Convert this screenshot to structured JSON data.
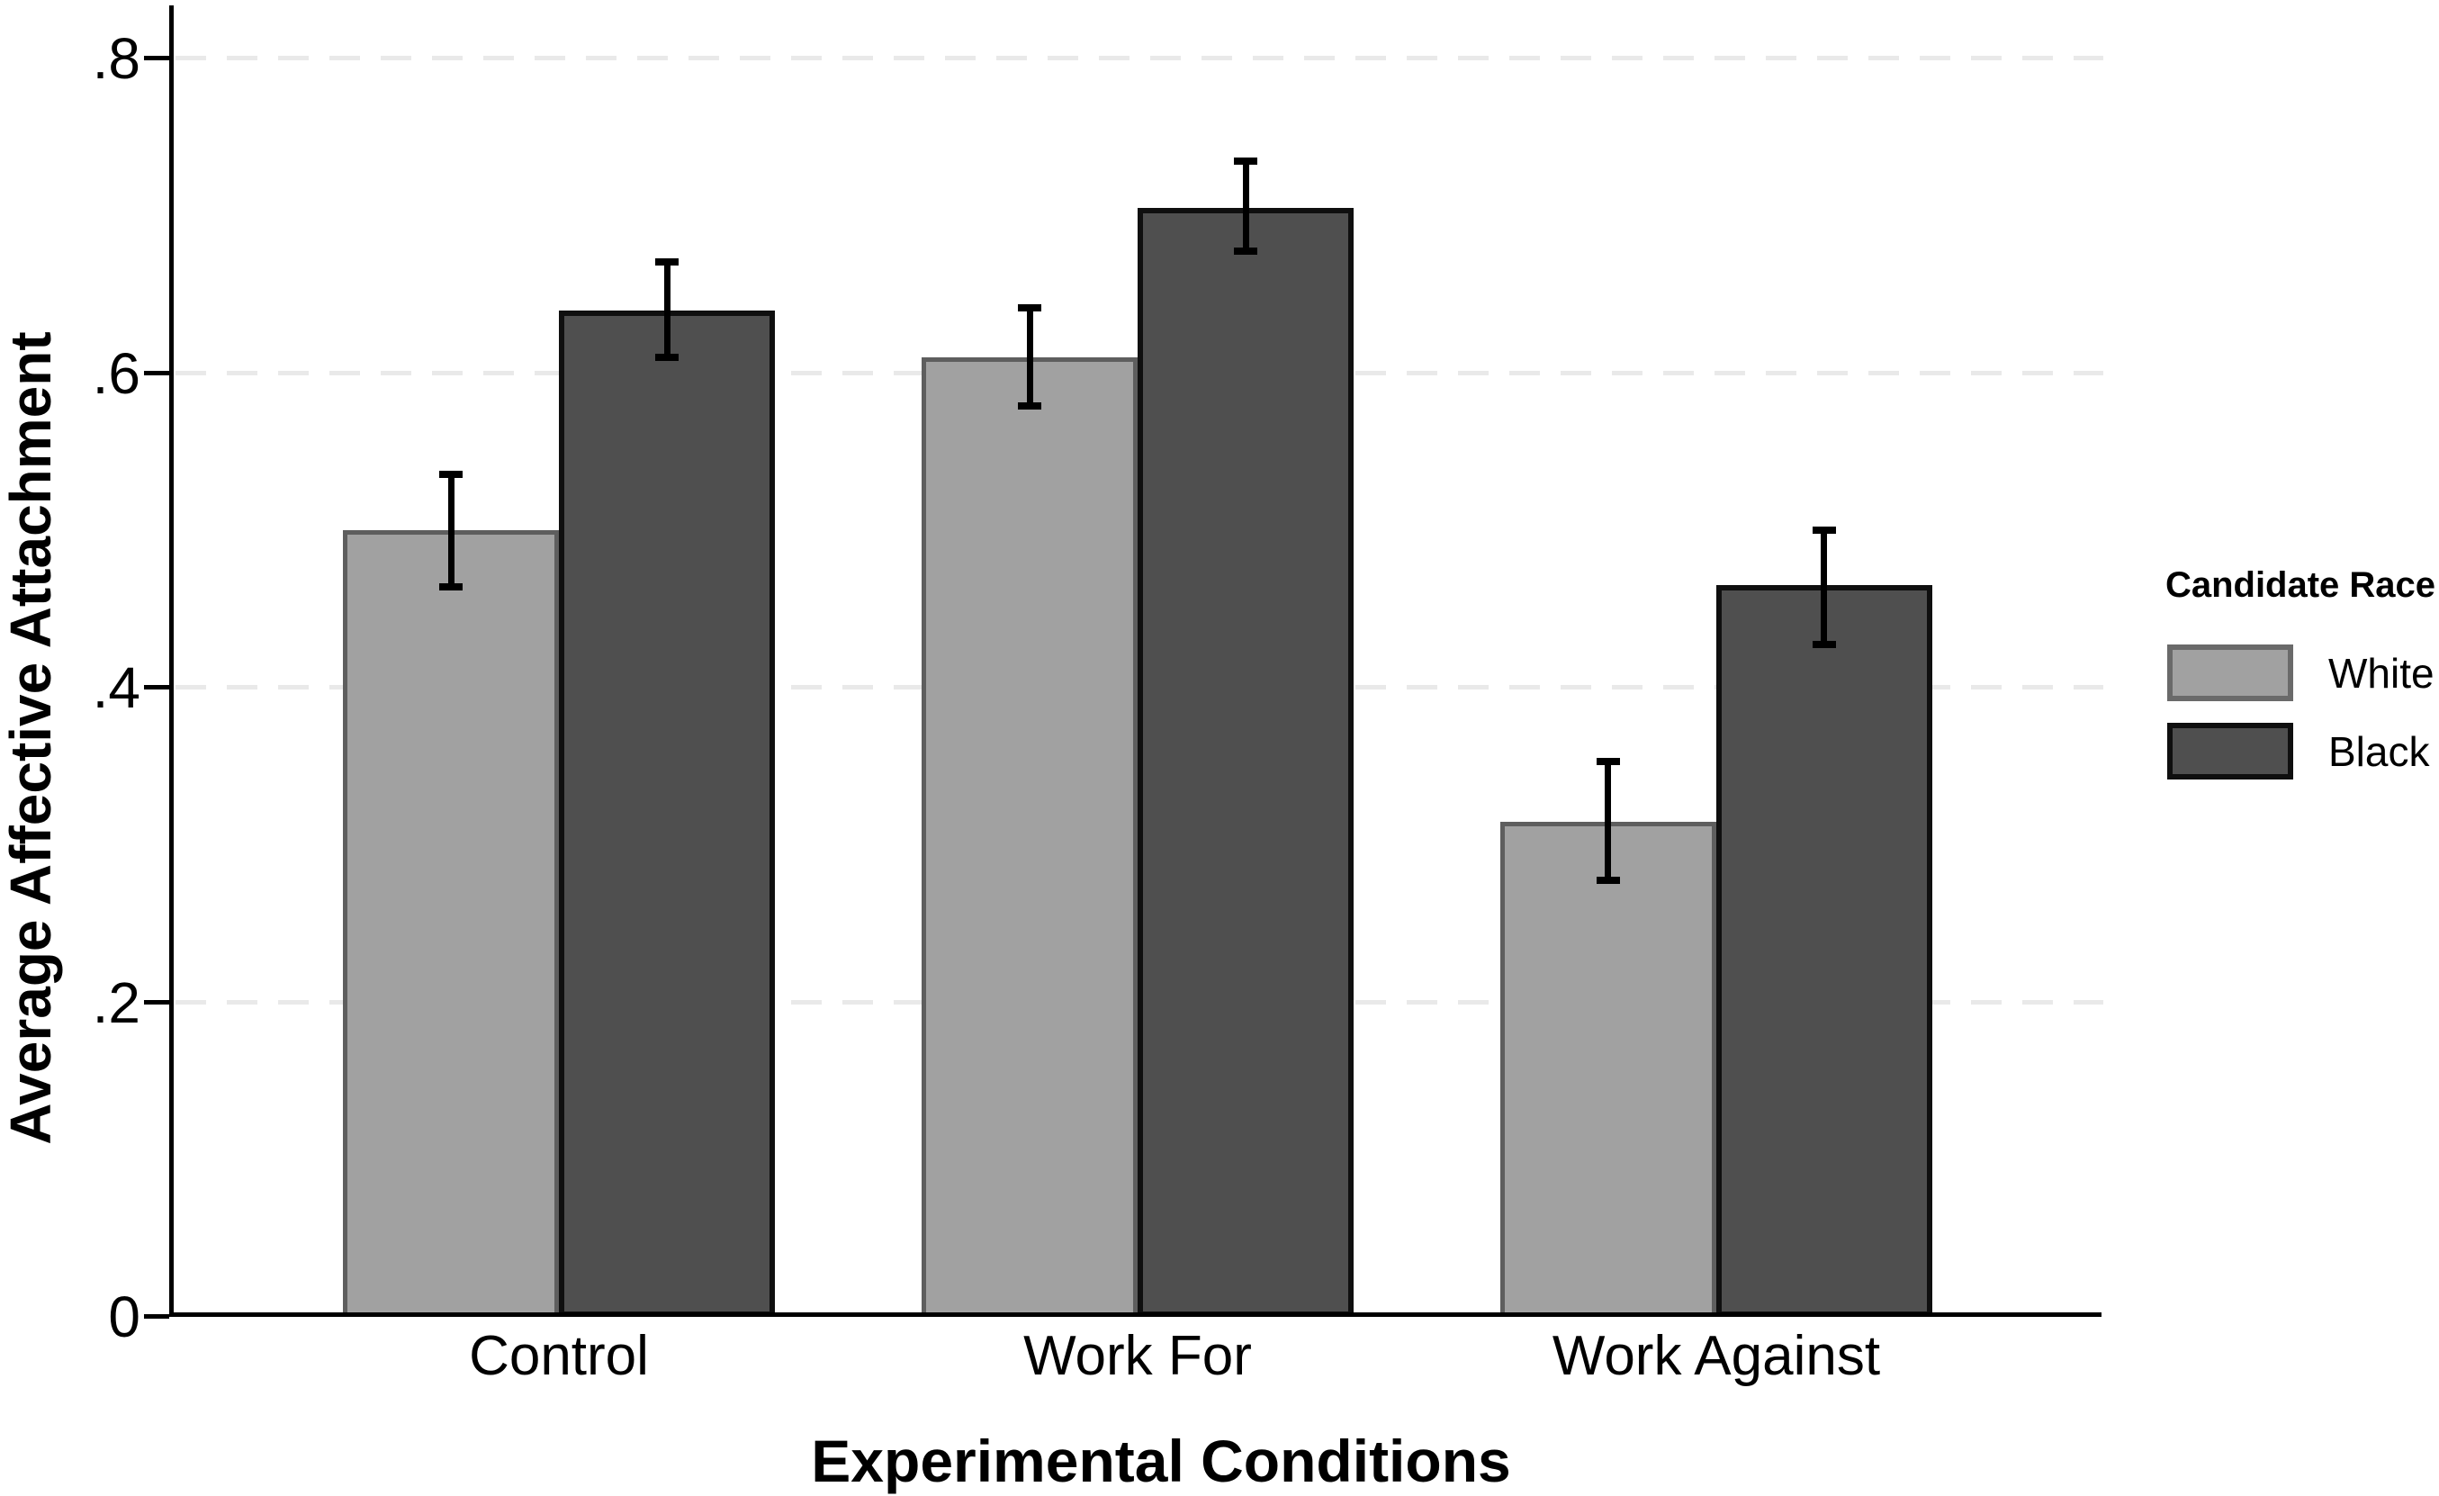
{
  "chart_data": {
    "type": "bar",
    "title": "",
    "xlabel": "Experimental Conditions",
    "ylabel": "Average Affective Attachment",
    "categories": [
      "Control",
      "Work For",
      "Work Against"
    ],
    "series": [
      {
        "name": "White",
        "fill": "#a1a1a1",
        "border": "#5e5e5e",
        "values": [
          0.5,
          0.61,
          0.315
        ],
        "ci_low": [
          0.462,
          0.577,
          0.275
        ],
        "ci_high": [
          0.538,
          0.644,
          0.355
        ]
      },
      {
        "name": "Black",
        "fill": "#4f4f4f",
        "border": "#0f0f0f",
        "values": [
          0.64,
          0.705,
          0.465
        ],
        "ci_low": [
          0.608,
          0.675,
          0.425
        ],
        "ci_high": [
          0.673,
          0.737,
          0.502
        ]
      }
    ],
    "y_ticks": [
      {
        "value": 0,
        "label": "0"
      },
      {
        "value": 0.2,
        "label": ".2"
      },
      {
        "value": 0.4,
        "label": ".4"
      },
      {
        "value": 0.6,
        "label": ".6"
      },
      {
        "value": 0.8,
        "label": ".8"
      }
    ],
    "ylim": [
      0,
      0.84
    ],
    "grid": "horizontal dashed gridlines at labeled ticks, behind bars",
    "error_bars": true,
    "legend": {
      "title": "Candidate Race",
      "position": "right"
    },
    "colors": {
      "axis": "#000000",
      "gridline": "#e9e9e9",
      "background": "#ffffff"
    }
  }
}
